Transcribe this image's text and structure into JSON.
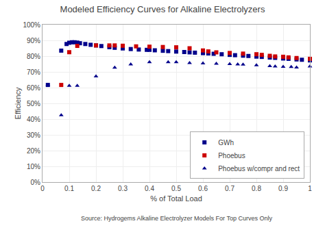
{
  "chart_data": {
    "type": "scatter",
    "title": "Modeled Efficiency Curves for Alkaline Electrolyzers",
    "xlabel": "% of Total Load",
    "ylabel": "Efficiency",
    "source": "Source: Hydrogems Alkaline Electrolyzer Models For Top Curves Only",
    "xlim": [
      0,
      1.0
    ],
    "ylim": [
      0.0,
      1.0
    ],
    "xticks": [
      0,
      0.1,
      0.2,
      0.3,
      0.4,
      0.5,
      0.6,
      0.7,
      0.8,
      0.9,
      1
    ],
    "yticks": [
      {
        "value": 0.0,
        "label": "0%"
      },
      {
        "value": 0.1,
        "label": "10%"
      },
      {
        "value": 0.2,
        "label": "20%"
      },
      {
        "value": 0.3,
        "label": "30%"
      },
      {
        "value": 0.4,
        "label": "40%"
      },
      {
        "value": 0.5,
        "label": "50%"
      },
      {
        "value": 0.6,
        "label": "60%"
      },
      {
        "value": 0.7,
        "label": "70%"
      },
      {
        "value": 0.8,
        "label": "80%"
      },
      {
        "value": 0.9,
        "label": "90%"
      },
      {
        "value": 1.0,
        "label": "100%"
      }
    ],
    "grid": true,
    "legend": "lower right",
    "series": [
      {
        "name": "GWh",
        "color": "#00008B",
        "marker": "square",
        "x": [
          0.02,
          0.07,
          0.09,
          0.1,
          0.11,
          0.12,
          0.13,
          0.14,
          0.16,
          0.18,
          0.2,
          0.22,
          0.25,
          0.27,
          0.3,
          0.33,
          0.36,
          0.39,
          0.4,
          0.42,
          0.45,
          0.47,
          0.5,
          0.53,
          0.55,
          0.57,
          0.6,
          0.62,
          0.64,
          0.67,
          0.7,
          0.72,
          0.75,
          0.77,
          0.8,
          0.82,
          0.85,
          0.87,
          0.9,
          0.92,
          0.95,
          0.97,
          1.0
        ],
        "values": [
          0.617,
          0.835,
          0.877,
          0.885,
          0.888,
          0.888,
          0.886,
          0.882,
          0.877,
          0.872,
          0.868,
          0.864,
          0.857,
          0.853,
          0.849,
          0.845,
          0.842,
          0.84,
          0.84,
          0.837,
          0.834,
          0.832,
          0.829,
          0.826,
          0.824,
          0.822,
          0.819,
          0.817,
          0.815,
          0.812,
          0.808,
          0.806,
          0.803,
          0.801,
          0.797,
          0.795,
          0.791,
          0.789,
          0.785,
          0.783,
          0.779,
          0.777,
          0.773
        ]
      },
      {
        "name": "Phoebus",
        "color": "#CC0000",
        "marker": "square",
        "x": [
          0.07,
          0.1,
          0.13,
          0.2,
          0.25,
          0.27,
          0.3,
          0.35,
          0.4,
          0.45,
          0.5,
          0.55,
          0.6,
          0.62,
          0.65,
          0.7,
          0.75,
          0.8,
          0.82,
          0.85,
          0.87,
          0.9,
          0.92,
          0.95,
          1.0
        ],
        "values": [
          0.617,
          0.825,
          0.865,
          0.868,
          0.868,
          0.868,
          0.866,
          0.862,
          0.86,
          0.858,
          0.856,
          0.85,
          0.836,
          0.83,
          0.824,
          0.82,
          0.816,
          0.812,
          0.808,
          0.802,
          0.798,
          0.796,
          0.792,
          0.788,
          0.783
        ]
      },
      {
        "name": "Phoebus w/compr and rect",
        "color": "#00008B",
        "marker": "triangle-up",
        "x": [
          0.02,
          0.07,
          0.1,
          0.13,
          0.2,
          0.27,
          0.33,
          0.4,
          0.47,
          0.5,
          0.55,
          0.6,
          0.65,
          0.7,
          0.73,
          0.75,
          0.8,
          0.85,
          0.87,
          0.9,
          0.93,
          0.95,
          1.0
        ],
        "values": [
          0.617,
          0.425,
          0.612,
          0.612,
          0.672,
          0.727,
          0.748,
          0.762,
          0.762,
          0.762,
          0.756,
          0.754,
          0.752,
          0.75,
          0.748,
          0.747,
          0.742,
          0.737,
          0.735,
          0.733,
          0.731,
          0.728,
          0.735
        ]
      }
    ]
  }
}
